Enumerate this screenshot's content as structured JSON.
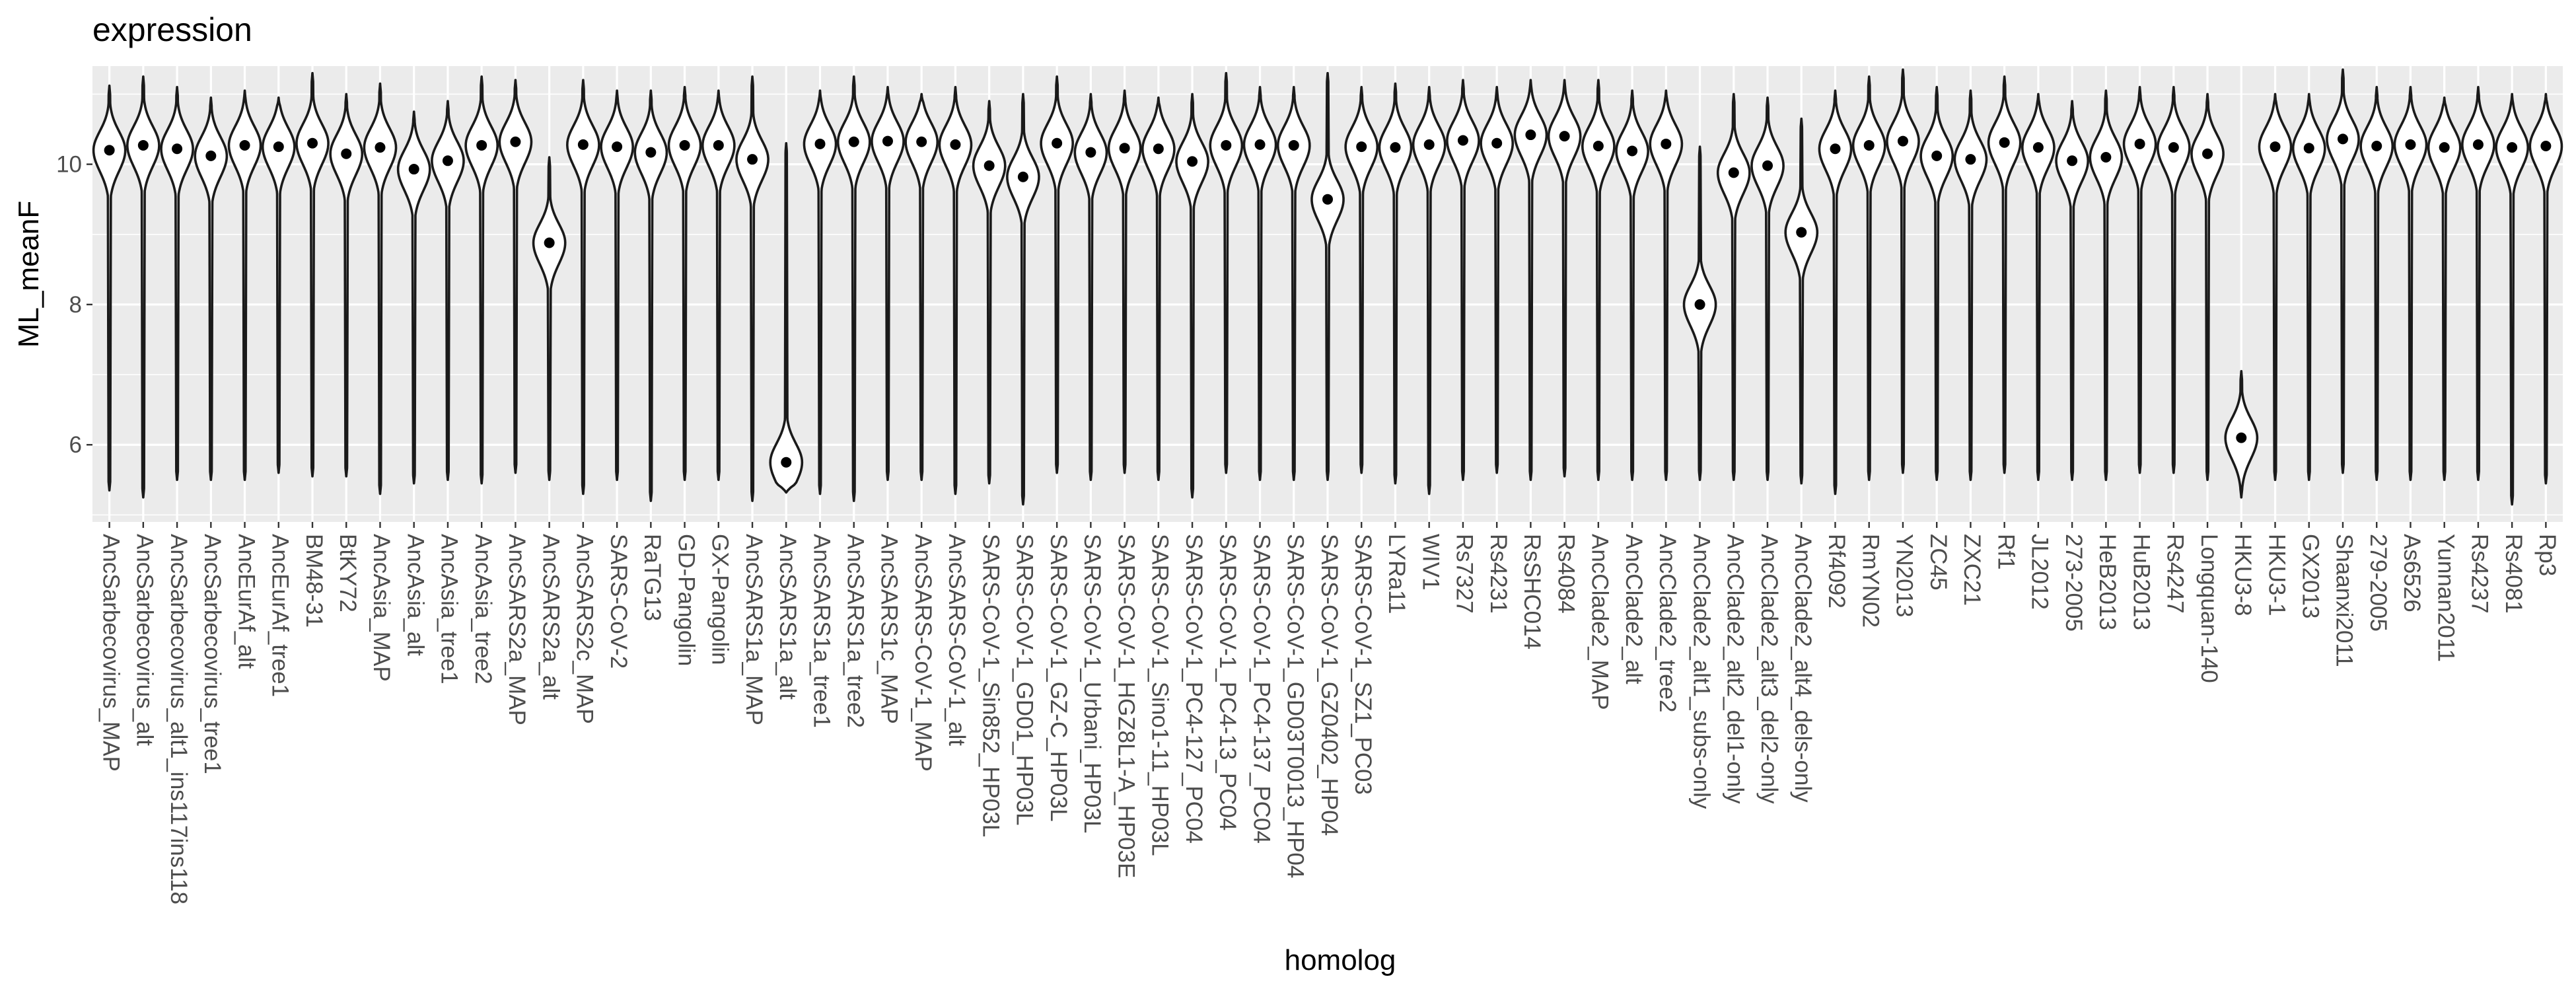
{
  "chart_data": {
    "type": "violin",
    "title": "expression",
    "xlabel": "homolog",
    "ylabel": "ML_meanF",
    "ylim": [
      4.9,
      11.4
    ],
    "yticks": [
      6,
      8,
      10
    ],
    "grid": true,
    "legend": "none",
    "colors": {
      "panel": "#ebebeb",
      "grid_major": "#ffffff",
      "violin_fill": "#ffffff",
      "violin_stroke": "#1a1a1a",
      "point": "#000000",
      "tick_label": "#4d4d4d"
    },
    "categories": [
      "AncSarbecovirus_MAP",
      "AncSarbecovirus_alt",
      "AncSarbecovirus_alt1_ins117ins118",
      "AncSarbecovirus_tree1",
      "AncEurAf_alt",
      "AncEurAf_tree1",
      "BM48-31",
      "BtKY72",
      "AncAsia_MAP",
      "AncAsia_alt",
      "AncAsia_tree1",
      "AncAsia_tree2",
      "AncSARS2a_MAP",
      "AncSARS2a_alt",
      "AncSARS2c_MAP",
      "SARS-CoV-2",
      "RaTG13",
      "GD-Pangolin",
      "GX-Pangolin",
      "AncSARS1a_MAP",
      "AncSARS1a_alt",
      "AncSARS1a_tree1",
      "AncSARS1a_tree2",
      "AncSARS1c_MAP",
      "AncSARS-CoV-1_MAP",
      "AncSARS-CoV-1_alt",
      "SARS-CoV-1_Sin852_HP03L",
      "SARS-CoV-1_GD01_HP03L",
      "SARS-CoV-1_GZ-C_HP03L",
      "SARS-CoV-1_Urbani_HP03L",
      "SARS-CoV-1_HGZ8L1-A_HP03E",
      "SARS-CoV-1_Sino1-11_HP03L",
      "SARS-CoV-1_PC4-127_PC04",
      "SARS-CoV-1_PC4-13_PC04",
      "SARS-CoV-1_PC4-137_PC04",
      "SARS-CoV-1_GD03T0013_HP04",
      "SARS-CoV-1_GZ0402_HP04",
      "SARS-CoV-1_SZ1_PC03",
      "LYRa11",
      "WIV1",
      "Rs7327",
      "Rs4231",
      "RsSHC014",
      "Rs4084",
      "AncClade2_MAP",
      "AncClade2_alt",
      "AncClade2_tree2",
      "AncClade2_alt1_subs-only",
      "AncClade2_alt2_del1-only",
      "AncClade2_alt3_del2-only",
      "AncClade2_alt4_dels-only",
      "Rf4092",
      "RmYN02",
      "YN2013",
      "ZC45",
      "ZXC21",
      "Rf1",
      "JL2012",
      "273-2005",
      "HeB2013",
      "HuB2013",
      "Rs4247",
      "Longquan-140",
      "HKU3-8",
      "HKU3-1",
      "GX2013",
      "Shaanxi2011",
      "279-2005",
      "As6526",
      "Yunnan2011",
      "Rs4237",
      "Rs4081",
      "Rp3"
    ],
    "medians": [
      10.2,
      10.27,
      10.22,
      10.12,
      10.27,
      10.25,
      10.3,
      10.15,
      10.24,
      9.93,
      10.05,
      10.27,
      10.32,
      8.88,
      10.28,
      10.25,
      10.17,
      10.27,
      10.27,
      10.07,
      5.75,
      10.29,
      10.32,
      10.33,
      10.32,
      10.28,
      9.98,
      9.82,
      10.3,
      10.17,
      10.23,
      10.22,
      10.04,
      10.27,
      10.28,
      10.27,
      9.5,
      10.25,
      10.24,
      10.28,
      10.34,
      10.3,
      10.42,
      10.4,
      10.26,
      10.19,
      10.29,
      8.0,
      9.88,
      9.98,
      9.03,
      10.22,
      10.27,
      10.33,
      10.12,
      10.07,
      10.31,
      10.24,
      10.05,
      10.1,
      10.29,
      10.24,
      10.15,
      6.1,
      10.25,
      10.23,
      10.36,
      10.26,
      10.28,
      10.24,
      10.28,
      10.24,
      10.26
    ],
    "ranges": [
      [
        5.35,
        11.12
      ],
      [
        5.25,
        11.25
      ],
      [
        5.5,
        11.1
      ],
      [
        5.5,
        10.95
      ],
      [
        5.5,
        11.05
      ],
      [
        5.6,
        10.95
      ],
      [
        5.55,
        11.3
      ],
      [
        5.55,
        11.0
      ],
      [
        5.3,
        11.15
      ],
      [
        5.45,
        10.75
      ],
      [
        5.5,
        10.9
      ],
      [
        5.45,
        11.25
      ],
      [
        5.6,
        11.2
      ],
      [
        5.5,
        10.1
      ],
      [
        5.3,
        11.2
      ],
      [
        5.5,
        11.05
      ],
      [
        5.2,
        11.05
      ],
      [
        5.5,
        11.1
      ],
      [
        5.5,
        11.05
      ],
      [
        5.2,
        11.25
      ],
      [
        5.32,
        10.3
      ],
      [
        5.3,
        11.05
      ],
      [
        5.2,
        11.25
      ],
      [
        5.5,
        11.1
      ],
      [
        5.5,
        11.0
      ],
      [
        5.3,
        11.1
      ],
      [
        5.45,
        10.9
      ],
      [
        5.15,
        11.0
      ],
      [
        5.6,
        11.25
      ],
      [
        5.5,
        11.0
      ],
      [
        5.6,
        11.05
      ],
      [
        5.5,
        10.95
      ],
      [
        5.25,
        11.0
      ],
      [
        5.6,
        11.3
      ],
      [
        5.5,
        11.1
      ],
      [
        5.5,
        11.1
      ],
      [
        5.5,
        11.3
      ],
      [
        5.6,
        11.1
      ],
      [
        5.45,
        11.15
      ],
      [
        5.3,
        11.1
      ],
      [
        5.5,
        11.2
      ],
      [
        5.6,
        11.1
      ],
      [
        5.5,
        11.2
      ],
      [
        5.55,
        11.2
      ],
      [
        5.5,
        11.2
      ],
      [
        5.5,
        11.05
      ],
      [
        5.5,
        11.05
      ],
      [
        5.5,
        10.25
      ],
      [
        5.5,
        11.0
      ],
      [
        5.5,
        10.95
      ],
      [
        5.45,
        10.65
      ],
      [
        5.3,
        11.05
      ],
      [
        5.5,
        11.25
      ],
      [
        5.6,
        11.35
      ],
      [
        5.5,
        11.1
      ],
      [
        5.5,
        11.05
      ],
      [
        5.6,
        11.25
      ],
      [
        5.5,
        11.0
      ],
      [
        5.5,
        10.9
      ],
      [
        5.5,
        11.05
      ],
      [
        5.6,
        11.1
      ],
      [
        5.6,
        11.1
      ],
      [
        5.5,
        11.0
      ],
      [
        5.25,
        7.05
      ],
      [
        5.5,
        11.0
      ],
      [
        5.5,
        11.0
      ],
      [
        5.6,
        11.35
      ],
      [
        5.5,
        11.1
      ],
      [
        5.5,
        11.1
      ],
      [
        5.5,
        10.95
      ],
      [
        5.5,
        11.1
      ],
      [
        5.15,
        11.0
      ],
      [
        5.45,
        11.0
      ]
    ]
  }
}
